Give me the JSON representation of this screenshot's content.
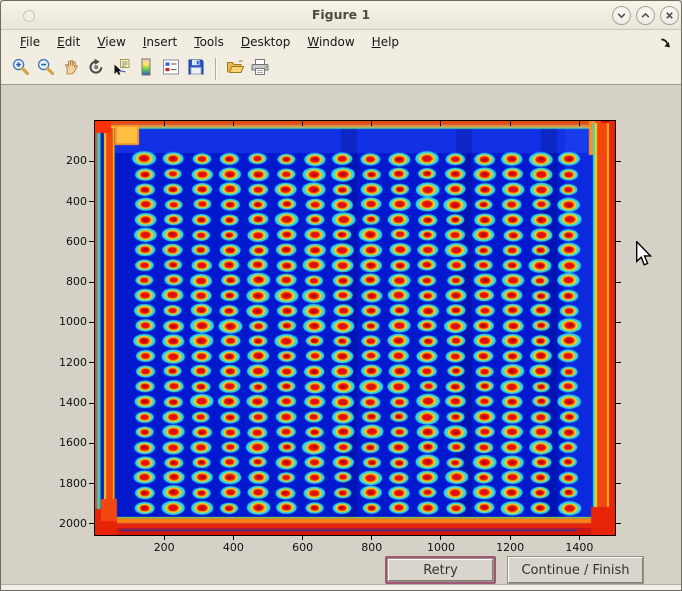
{
  "window": {
    "title": "Figure 1",
    "controls": [
      {
        "name": "shade",
        "icon": "chevron-down-icon"
      },
      {
        "name": "unshade",
        "icon": "chevron-up-icon"
      },
      {
        "name": "close",
        "icon": "close-icon"
      }
    ]
  },
  "menu": {
    "items": [
      "File",
      "Edit",
      "View",
      "Insert",
      "Tools",
      "Desktop",
      "Window",
      "Help"
    ],
    "overflow_icon": "dock-arrow-icon"
  },
  "toolbar": {
    "buttons": [
      "zoom-in-icon",
      "zoom-out-icon",
      "pan-icon",
      "rotate-3d-icon",
      "data-cursor-icon",
      "colorbar-icon",
      "legend-icon",
      "save-icon",
      "separator",
      "open-icon",
      "print-icon"
    ]
  },
  "dialog_buttons": {
    "retry": "Retry",
    "continue": "Continue / Finish"
  },
  "chart_data": {
    "type": "heatmap",
    "title": "",
    "xlabel": "",
    "ylabel": "",
    "xlim": [
      0,
      1503
    ],
    "ylim": [
      0,
      2055
    ],
    "y_axis_reversed": true,
    "xticks": [
      200,
      400,
      600,
      800,
      1000,
      1200,
      1400
    ],
    "yticks": [
      200,
      400,
      600,
      800,
      1000,
      1200,
      1400,
      1600,
      1800,
      2000
    ],
    "colormap": "jet",
    "description": "Jet-colormap thermal image of a microwell plate: deep blue field with a 16 x 24 grid of wells; each well is a cyan ellipse with a yellow ring and red-orange core; plate edges and a left vertical seam glow yellow/orange/red; corners are hottest.",
    "grid": {
      "cols": 16,
      "rows": 24,
      "first_col_x": 144.5,
      "col_spacing": 81.7,
      "first_row_y": 188.6,
      "row_spacing": 75.3
    },
    "colors": {
      "background": "#0019cf",
      "well_outer": "#35d8e8",
      "well_ring": "#ffd80a",
      "well_core": "#e01010",
      "well_core_dark": "#b80000",
      "edge_hot": "#f04810",
      "edge_hotter": "#e02808",
      "edge_warm": "#ffd000"
    }
  }
}
